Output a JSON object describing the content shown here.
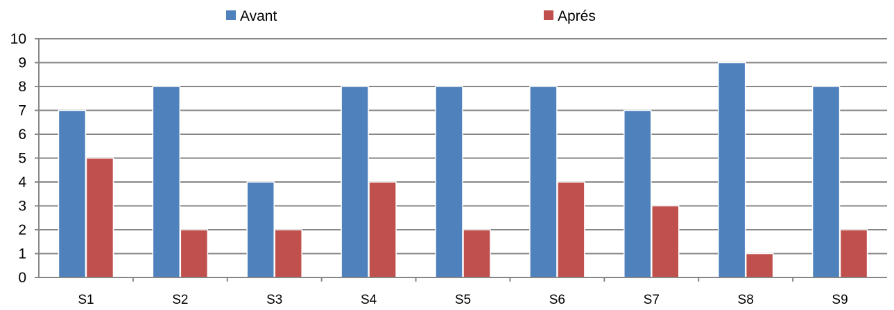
{
  "chart_data": {
    "type": "bar",
    "categories": [
      "S1",
      "S2",
      "S3",
      "S4",
      "S5",
      "S6",
      "S7",
      "S8",
      "S9"
    ],
    "series": [
      {
        "name": "Avant",
        "color": "#4F81BD",
        "values": [
          7,
          8,
          4,
          8,
          8,
          8,
          7,
          9,
          8
        ]
      },
      {
        "name": "Aprés",
        "color": "#C0504D",
        "values": [
          5,
          2,
          2,
          4,
          2,
          4,
          3,
          1,
          2
        ]
      }
    ],
    "ylim": [
      0,
      10
    ],
    "yticks": [
      "0",
      "1",
      "2",
      "3",
      "4",
      "5",
      "6",
      "7",
      "8",
      "9",
      "10"
    ],
    "grid": true,
    "legend": "top"
  }
}
